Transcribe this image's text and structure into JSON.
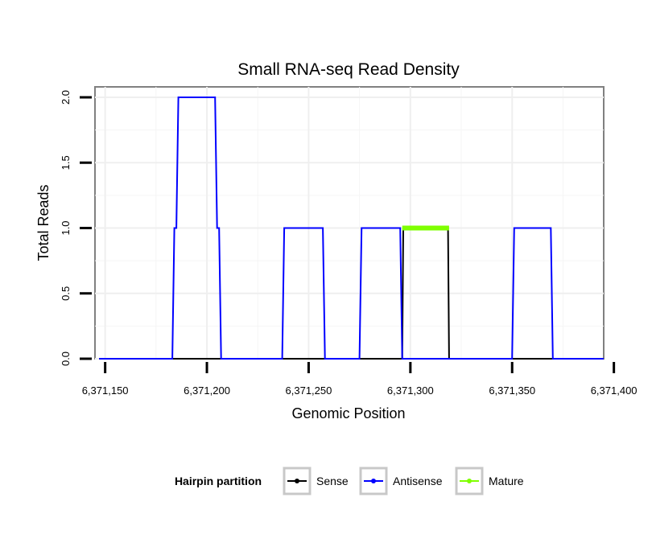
{
  "chart_data": {
    "type": "line",
    "title": "Small RNA-seq Read Density",
    "xlabel": "Genomic Position",
    "ylabel": "Total Reads",
    "xlim": [
      6371145,
      6371395
    ],
    "ylim": [
      0,
      2.08
    ],
    "x_ticks": [
      6371150,
      6371200,
      6371250,
      6371300,
      6371350,
      6371400
    ],
    "x_tick_labels": [
      "6,371,150",
      "6,371,200",
      "6,371,250",
      "6,371,300",
      "6,371,350",
      "6,371,400"
    ],
    "y_ticks": [
      0,
      0.5,
      1,
      1.5,
      2
    ],
    "y_tick_labels": [
      "0.0",
      "0.5",
      "1.0",
      "1.5",
      "2.0"
    ],
    "grid": true,
    "legend": {
      "title": "Hairpin partition",
      "position": "bottom",
      "entries": [
        "Sense",
        "Antisense",
        "Mature"
      ]
    },
    "series": [
      {
        "name": "Sense",
        "color": "#000000",
        "x": [
          6371147,
          6371296,
          6371296.5,
          6371297,
          6371318,
          6371318.5,
          6371319,
          6371395
        ],
        "y": [
          0,
          0,
          1,
          1,
          1,
          1,
          0,
          0
        ]
      },
      {
        "name": "Antisense",
        "color": "#0000ff",
        "x": [
          6371147,
          6371183,
          6371184,
          6371185,
          6371186,
          6371204,
          6371205,
          6371206,
          6371207,
          6371237,
          6371238,
          6371257,
          6371258,
          6371275,
          6371276,
          6371295,
          6371296,
          6371312,
          6371350,
          6371351,
          6371369,
          6371370,
          6371395
        ],
        "y": [
          0,
          0,
          1,
          1,
          2,
          2,
          1,
          1,
          0,
          0,
          1,
          1,
          0,
          0,
          1,
          1,
          0,
          0,
          0,
          1,
          1,
          0,
          0
        ]
      },
      {
        "name": "Mature",
        "color": "#7fff00",
        "x": [
          6371296,
          6371319
        ],
        "y": [
          1,
          1
        ]
      }
    ]
  }
}
